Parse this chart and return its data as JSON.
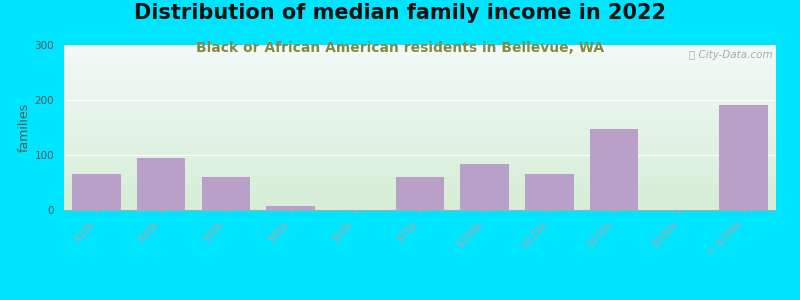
{
  "title": "Distribution of median family income in 2022",
  "subtitle": "Black or African American residents in Bellevue, WA",
  "ylabel": "families",
  "categories": [
    "$10k",
    "$20k",
    "$30k",
    "$40k",
    "$50k",
    "$75k",
    "$100k",
    "$125k",
    "$150k",
    "$200k",
    "> $200k"
  ],
  "values": [
    65,
    95,
    60,
    8,
    0,
    60,
    83,
    65,
    148,
    0,
    190
  ],
  "bar_color": "#b8a0c8",
  "bg_outer": "#00e5ff",
  "ylim": [
    0,
    300
  ],
  "yticks": [
    0,
    100,
    200,
    300
  ],
  "title_fontsize": 15,
  "subtitle_fontsize": 10,
  "ylabel_fontsize": 9,
  "tick_fontsize": 7.5
}
